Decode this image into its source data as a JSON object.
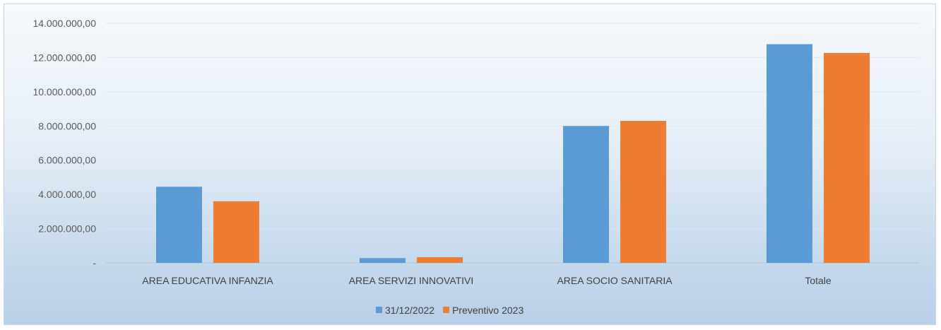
{
  "chart_data": {
    "type": "bar",
    "title": "",
    "xlabel": "",
    "ylabel": "",
    "categories": [
      "AREA EDUCATIVA INFANZIA",
      "AREA SERVIZI INNOVATIVI",
      "AREA SOCIO SANITARIA",
      "Totale"
    ],
    "series": [
      {
        "name": "31/12/2022",
        "color": "#5b9bd5",
        "values": [
          4450000,
          280000,
          8000000,
          12780000
        ]
      },
      {
        "name": "Preventivo 2023",
        "color": "#ed7d31",
        "values": [
          3600000,
          330000,
          8300000,
          12270000
        ]
      }
    ],
    "ylim": [
      0,
      14000000
    ],
    "yticks": [
      0,
      2000000,
      4000000,
      6000000,
      8000000,
      10000000,
      12000000,
      14000000
    ],
    "ytick_labels": [
      "-",
      "2.000.000,00",
      "4.000.000,00",
      "6.000.000,00",
      "8.000.000,00",
      "10.000.000,00",
      "12.000.000,00",
      "14.000.000,00"
    ],
    "grid": true,
    "legend_position": "bottom"
  }
}
